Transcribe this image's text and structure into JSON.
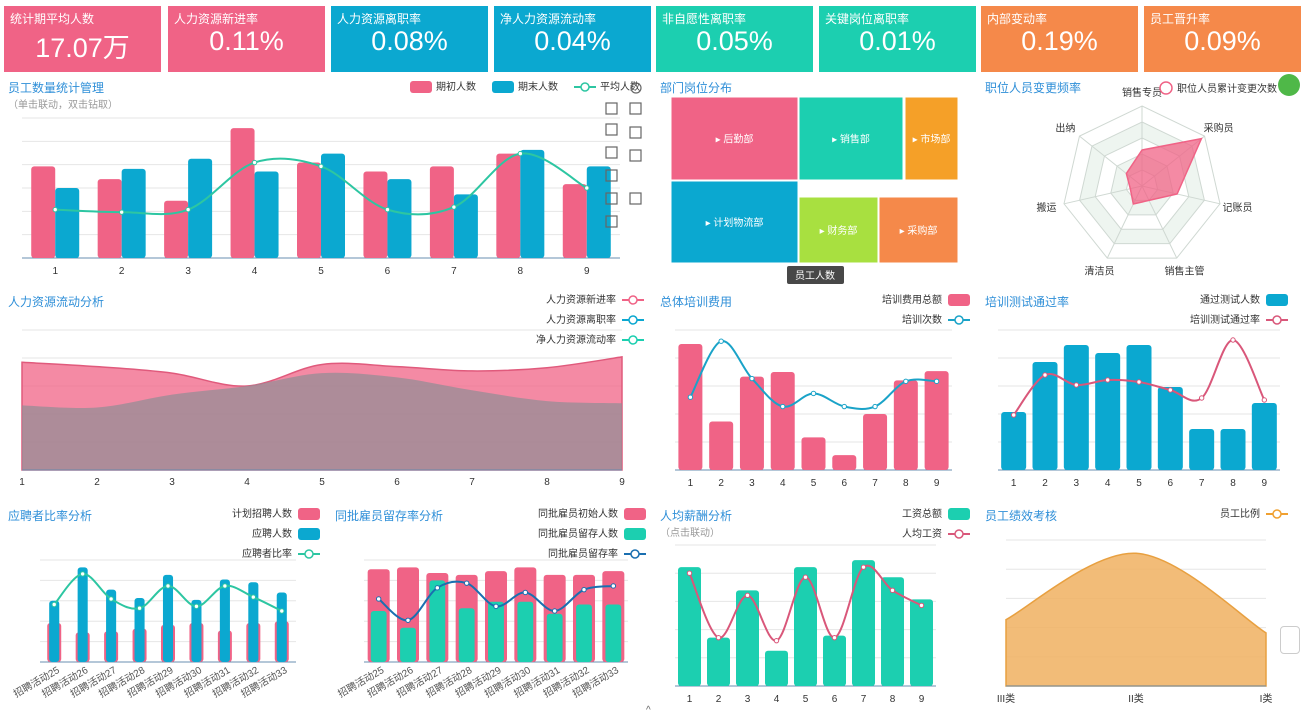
{
  "kpis": [
    {
      "title": "统计期平均人数",
      "value": "17.07万",
      "color": "#f06386"
    },
    {
      "title": "人力资源新进率",
      "value": "0.11%",
      "color": "#f06386"
    },
    {
      "title": "人力资源离职率",
      "value": "0.08%",
      "color": "#0ba8d0"
    },
    {
      "title": "净人力资源流动率",
      "value": "0.04%",
      "color": "#0ba8d0"
    },
    {
      "title": "非自愿性离职率",
      "value": "0.05%",
      "color": "#1ccfb0"
    },
    {
      "title": "关键岗位离职率",
      "value": "0.01%",
      "color": "#1ccfb0"
    },
    {
      "title": "内部变动率",
      "value": "0.19%",
      "color": "#f5894a"
    },
    {
      "title": "员工晋升率",
      "value": "0.09%",
      "color": "#f5894a"
    }
  ],
  "toolbox": {
    "icons": [
      "restore-icon",
      "fullscreen-icon",
      "menu-icon",
      "select-icon",
      "copy-icon",
      "line-type-icon",
      "clear-icon",
      "bar-type-icon",
      "stack-icon",
      "tile-icon"
    ]
  },
  "chart_data": [
    {
      "id": "headcount",
      "type": "bar",
      "title": "员工数量统计管理",
      "subtitle": "（单击联动，双击钻取）",
      "categories": [
        "1",
        "2",
        "3",
        "4",
        "5",
        "6",
        "7",
        "8",
        "9"
      ],
      "series": [
        {
          "name": "期初人数",
          "type": "bar",
          "color": "#f06386",
          "values": [
            72,
            62,
            45,
            102,
            75,
            68,
            72,
            82,
            58
          ]
        },
        {
          "name": "期末人数",
          "type": "bar",
          "color": "#0ba8d0",
          "values": [
            55,
            70,
            78,
            68,
            82,
            62,
            50,
            85,
            72
          ]
        },
        {
          "name": "平均人数",
          "type": "line",
          "color": "#2dc6a2",
          "values": [
            38,
            36,
            38,
            75,
            72,
            38,
            40,
            82,
            55
          ]
        }
      ],
      "ylim": [
        0,
        110
      ]
    },
    {
      "id": "dept",
      "type": "treemap",
      "title": "部门岗位分布",
      "tooltip": "员工人数",
      "items": [
        {
          "name": "后勤部",
          "color": "#f06386"
        },
        {
          "name": "销售部",
          "color": "#1ccfb0"
        },
        {
          "name": "市场部",
          "color": "#f5a028"
        },
        {
          "name": "计划物流部",
          "color": "#0ba8d0"
        },
        {
          "name": "财务部",
          "color": "#a8e040"
        },
        {
          "name": "采购部",
          "color": "#f5894a"
        }
      ]
    },
    {
      "id": "radar",
      "type": "radar",
      "title": "职位人员变更频率",
      "legend": "职位人员累计变更次数",
      "indicators": [
        "销售专员",
        "采购员",
        "记账员",
        "销售主管",
        "清洁员",
        "搬运",
        "出纳"
      ],
      "values": [
        0.45,
        0.95,
        0.45,
        0.2,
        0.25,
        0.15,
        0.25
      ],
      "color": "#f06386"
    },
    {
      "id": "flow",
      "type": "area",
      "title": "人力资源流动分析",
      "categories": [
        "1",
        "2",
        "3",
        "4",
        "5",
        "6",
        "7",
        "8",
        "9"
      ],
      "series": [
        {
          "name": "人力资源新进率",
          "color": "#f06386",
          "values": [
            100,
            96,
            90,
            78,
            98,
            96,
            92,
            95,
            105
          ]
        },
        {
          "name": "人力资源离职率",
          "color": "#0ba8d0",
          "values": [
            60,
            58,
            70,
            78,
            90,
            86,
            74,
            64,
            62
          ]
        },
        {
          "name": "净人力资源流动率",
          "color": "#1ccfb0",
          "values": [
            62,
            58,
            68,
            72,
            88,
            84,
            70,
            62,
            58
          ]
        }
      ],
      "ylim": [
        0,
        130
      ]
    },
    {
      "id": "training_cost",
      "type": "bar",
      "title": "总体培训费用",
      "categories": [
        "1",
        "2",
        "3",
        "4",
        "5",
        "6",
        "7",
        "8",
        "9"
      ],
      "series": [
        {
          "name": "培训费用总额",
          "type": "bar",
          "color": "#f06386",
          "values": [
            135,
            52,
            100,
            105,
            35,
            16,
            60,
            96,
            106
          ]
        },
        {
          "name": "培训次数",
          "type": "line",
          "color": "#1aa3c8",
          "values": [
            78,
            138,
            98,
            68,
            82,
            68,
            68,
            95,
            95
          ]
        }
      ],
      "ylim": [
        0,
        150
      ]
    },
    {
      "id": "test_pass",
      "type": "bar",
      "title": "培训测试通过率",
      "categories": [
        "1",
        "2",
        "3",
        "4",
        "5",
        "6",
        "7",
        "8",
        "9"
      ],
      "series": [
        {
          "name": "通过测试人数",
          "type": "bar",
          "color": "#0ba8d0",
          "values": [
            58,
            108,
            125,
            117,
            125,
            83,
            41,
            41,
            67
          ]
        },
        {
          "name": "培训测试通过率",
          "type": "line",
          "color": "#d9577a",
          "values": [
            55,
            95,
            85,
            90,
            88,
            80,
            72,
            130,
            70
          ]
        }
      ],
      "ylim": [
        0,
        140
      ]
    },
    {
      "id": "applicant",
      "type": "bar",
      "title": "应聘者比率分析",
      "categories": [
        "招聘活动25",
        "招聘活动26",
        "招聘活动27",
        "招聘活动28",
        "招聘活动29",
        "招聘活动30",
        "招聘活动31",
        "招聘活动32",
        "招聘活动33"
      ],
      "series": [
        {
          "name": "计划招聘人数",
          "type": "bar",
          "color": "#f06386",
          "values": [
            42,
            32,
            33,
            36,
            40,
            42,
            34,
            42,
            44
          ]
        },
        {
          "name": "应聘人数",
          "type": "bar",
          "color": "#0ba8d0",
          "values": [
            66,
            102,
            78,
            69,
            94,
            67,
            89,
            86,
            75
          ]
        },
        {
          "name": "应聘者比率",
          "type": "line",
          "color": "#2dc6a2",
          "values": [
            62,
            95,
            68,
            58,
            82,
            60,
            82,
            70,
            55
          ]
        }
      ],
      "ylim": [
        0,
        110
      ]
    },
    {
      "id": "retention",
      "type": "bar",
      "title": "同批雇员留存率分析",
      "categories": [
        "招聘活动25",
        "招聘活动26",
        "招聘活动27",
        "招聘活动28",
        "招聘活动29",
        "招聘活动30",
        "招聘活动31",
        "招聘活动32",
        "招聘活动33"
      ],
      "series": [
        {
          "name": "同批雇员初始人数",
          "type": "bar",
          "color": "#f06386",
          "values": [
            100,
            102,
            96,
            94,
            98,
            102,
            94,
            94,
            98
          ]
        },
        {
          "name": "同批雇员留存人数",
          "type": "bar",
          "color": "#1ccfb0",
          "values": [
            55,
            37,
            88,
            58,
            65,
            65,
            52,
            62,
            62
          ]
        },
        {
          "name": "同批雇员留存率",
          "type": "line",
          "color": "#1a6fb0",
          "values": [
            68,
            45,
            80,
            85,
            60,
            75,
            55,
            78,
            82
          ]
        }
      ],
      "ylim": [
        0,
        110
      ]
    },
    {
      "id": "salary",
      "type": "bar",
      "title": "人均薪酬分析",
      "subtitle": "（点击联动）",
      "categories": [
        "1",
        "2",
        "3",
        "4",
        "5",
        "6",
        "7",
        "8",
        "9"
      ],
      "series": [
        {
          "name": "工资总额",
          "type": "bar",
          "color": "#1ccfb0",
          "values": [
            118,
            48,
            95,
            35,
            118,
            50,
            125,
            108,
            86
          ]
        },
        {
          "name": "人均工资",
          "type": "line",
          "color": "#d9577a",
          "values": [
            112,
            48,
            90,
            45,
            108,
            48,
            118,
            95,
            80
          ]
        }
      ],
      "ylim": [
        0,
        140
      ]
    },
    {
      "id": "performance",
      "type": "area",
      "title": "员工绩效考核",
      "categories": [
        "III类",
        "II类",
        "I类"
      ],
      "series": [
        {
          "name": "员工比例",
          "color": "#f0a030",
          "values": [
            50,
            100,
            40
          ]
        }
      ],
      "ylim": [
        0,
        110
      ]
    }
  ]
}
